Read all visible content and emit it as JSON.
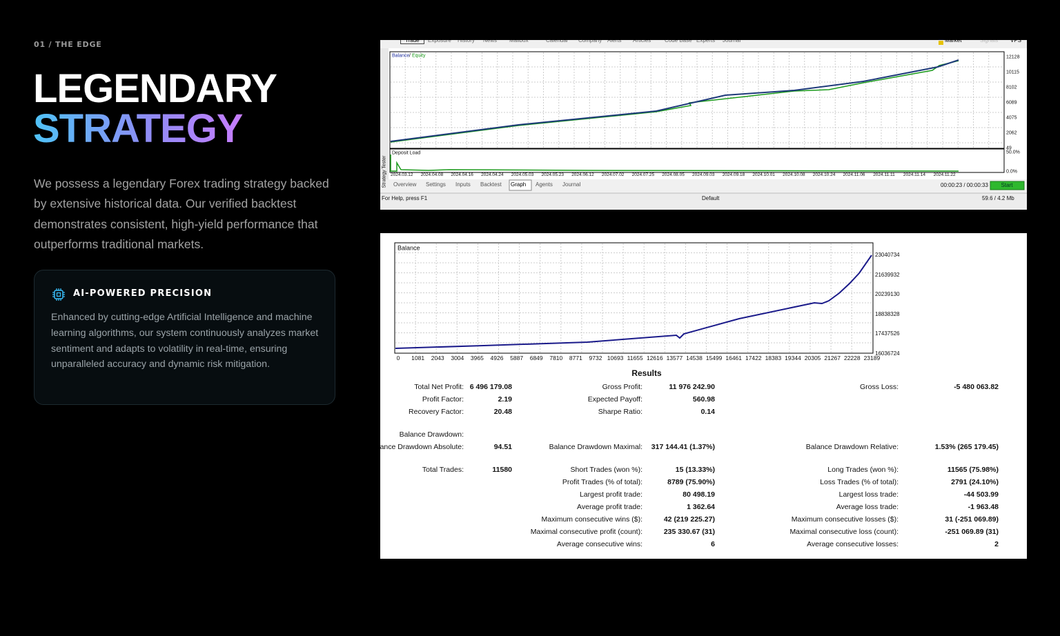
{
  "section": {
    "label": "01 / THE EDGE",
    "title_line1": "LEGENDARY",
    "title_line2": "STRATEGY",
    "description": "We possess a legendary Forex trading strategy backed by extensive historical data. Our verified backtest demonstrates consistent, high-yield performance that outperforms traditional markets."
  },
  "card": {
    "title": "AI-POWERED PRECISION",
    "text": "Enhanced by cutting-edge Artificial Intelligence and machine learning algorithms, our system continuously analyzes market sentiment and adapts to volatility in real-time, ensuring unparalleled accuracy and dynamic risk mitigation."
  },
  "tester": {
    "top_tabs": [
      "Trade",
      "Exposure",
      "History",
      "News",
      "Mailbox",
      "Calendar",
      "Company",
      "Alerts",
      "Articles",
      "Code Base",
      "Experts",
      "Journal"
    ],
    "top_right": [
      "Market",
      "Signals",
      "VPS"
    ],
    "legend": {
      "balance": "Balance",
      "separator": "/",
      "equity": "Equity"
    },
    "yticks": [
      "12128",
      "10115",
      "8102",
      "6089",
      "4075",
      "2062",
      "49"
    ],
    "deposit_label": "Deposit Load",
    "deposit_ticks": [
      "50.0%",
      "0.0%"
    ],
    "dates": [
      "2024.03.12",
      "2024.04.08",
      "2024.04.16",
      "2024.04.24",
      "2024.05.03",
      "2024.05.23",
      "2024.06.12",
      "2024.07.02",
      "2024.07.25",
      "2024.08.05",
      "2024.09.03",
      "2024.09.18",
      "2024.10.01",
      "2024.10.08",
      "2024.10.24",
      "2024.11.06",
      "2024.11.11",
      "2024.11.14",
      "2024.11.22"
    ],
    "side_label": "Strategy Tester",
    "tabs": [
      "Overview",
      "Settings",
      "Inputs",
      "Backtest",
      "Graph",
      "Agents",
      "Journal"
    ],
    "timer": "00:00:23 / 00:00:33",
    "start": "Start",
    "status_help": "For Help, press F1",
    "status_profile": "Default",
    "status_memory": "59.6 / 4.2 Mb"
  },
  "report": {
    "chart_label": "Balance",
    "yticks": [
      "23040734",
      "21639932",
      "20239130",
      "18838328",
      "17437526",
      "16036724"
    ],
    "xticks": [
      "0",
      "1081",
      "2043",
      "3004",
      "3965",
      "4926",
      "5887",
      "6849",
      "7810",
      "8771",
      "9732",
      "10693",
      "11655",
      "12616",
      "13577",
      "14538",
      "15499",
      "16461",
      "17422",
      "18383",
      "19344",
      "20305",
      "21267",
      "22228",
      "23189"
    ],
    "results_title": "Results",
    "rows": [
      {
        "c1": [
          "Total Net Profit:",
          "6 496 179.08"
        ],
        "c2": [
          "Gross Profit:",
          "11 976 242.90"
        ],
        "c3": [
          "Gross Loss:",
          "-5 480 063.82"
        ]
      },
      {
        "c1": [
          "Profit Factor:",
          "2.19"
        ],
        "c2": [
          "Expected Payoff:",
          "560.98"
        ]
      },
      {
        "c1": [
          "Recovery Factor:",
          "20.48"
        ],
        "c2": [
          "Sharpe Ratio:",
          "0.14"
        ]
      },
      {
        "c1": [
          "Balance Drawdown:"
        ]
      },
      {
        "c1": [
          "Balance Drawdown Absolute:",
          "94.51"
        ],
        "c2": [
          "Balance Drawdown Maximal:",
          "317 144.41 (1.37%)"
        ],
        "c3": [
          "Balance Drawdown Relative:",
          "1.53% (265 179.45)"
        ]
      },
      {
        "c1": [
          "Total Trades:",
          "11580"
        ],
        "c2": [
          "Short Trades (won %):",
          "15 (13.33%)"
        ],
        "c3": [
          "Long Trades (won %):",
          "11565 (75.98%)"
        ]
      },
      {
        "c2": [
          "Profit Trades (% of total):",
          "8789 (75.90%)"
        ],
        "c3": [
          "Loss Trades (% of total):",
          "2791 (24.10%)"
        ]
      },
      {
        "c2": [
          "Largest profit trade:",
          "80 498.19"
        ],
        "c3": [
          "Largest loss trade:",
          "-44 503.99"
        ]
      },
      {
        "c2": [
          "Average profit trade:",
          "1 362.64"
        ],
        "c3": [
          "Average loss trade:",
          "-1 963.48"
        ]
      },
      {
        "c2": [
          "Maximum consecutive wins ($):",
          "42 (219 225.27)"
        ],
        "c3": [
          "Maximum consecutive losses ($):",
          "31 (-251 069.89)"
        ]
      },
      {
        "c2": [
          "Maximal consecutive profit (count):",
          "235 330.67 (31)"
        ],
        "c3": [
          "Maximal consecutive loss (count):",
          "-251 069.89 (31)"
        ]
      },
      {
        "c2": [
          "Average consecutive wins:",
          "6"
        ],
        "c3": [
          "Average consecutive losses:",
          "2"
        ]
      }
    ]
  }
}
